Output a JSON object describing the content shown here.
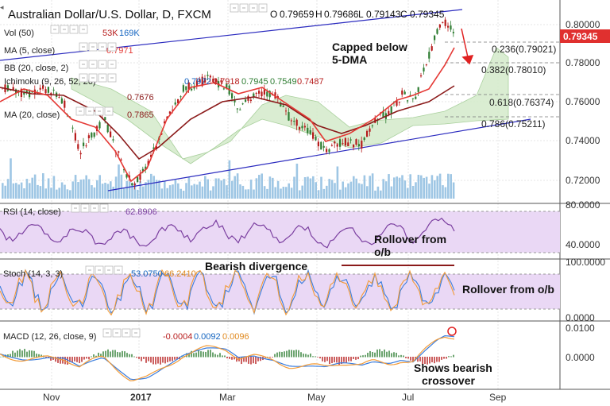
{
  "header": {
    "title": "Australian Dollar/U.S. Dollar, D, FXCM",
    "o_label": "O",
    "o_value": "0.79659",
    "h_label": "H",
    "h_value": "0.79686",
    "l_label": "L",
    "l_value": "0.79143",
    "c_label": "C",
    "c_value": "0.79345"
  },
  "legend": {
    "vol_label": "Vol (50)",
    "vol_v1": "53K",
    "vol_v2": "169K",
    "ma5_label": "MA (5, close)",
    "ma5_value": "0.7971",
    "bb_label": "BB (20, close, 2)",
    "ichimoku_label": "Ichimoku (9, 26, 52, 26)",
    "ichimoku_values": [
      "0.7972",
      "0.7918",
      "0.7945",
      "0.7549",
      "0.7487"
    ],
    "ma20_label": "MA (20, close)",
    "ma20_values": [
      "0.7676",
      "0.7865"
    ]
  },
  "annotations": {
    "capped_line1": "Capped below",
    "capped_line2": "5-DMA",
    "bearish_divergence": "Bearish divergence",
    "rsi_rollover_line1": "Rollover from",
    "rsi_rollover_line2": "o/b",
    "stoch_rollover": "Rollover from o/b",
    "macd_line1": "Shows bearish",
    "macd_line2": "crossover"
  },
  "price_axis": {
    "ticks": [
      "0.80000",
      "0.78000",
      "0.76000",
      "0.74000",
      "0.72000"
    ],
    "current_price": "0.79345"
  },
  "fib_levels": [
    "0.236(0.79021)",
    "0.382(0.78010)",
    "0.618(0.76374)",
    "0.786(0.75211)"
  ],
  "rsi": {
    "label": "RSI (14, close)",
    "value": "62.8906",
    "ticks": [
      "80.0000",
      "40.0000"
    ]
  },
  "stoch": {
    "label": "Stoch (14, 3, 3)",
    "values": [
      "53.0750",
      "66.2410"
    ],
    "ticks": [
      "100.0000",
      "0.0000"
    ]
  },
  "macd": {
    "label": "MACD (12, 26, close, 9)",
    "values": [
      "-0.0004",
      "0.0092",
      "0.0096"
    ],
    "ticks": [
      "0.0100",
      "0.0000"
    ]
  },
  "time_axis": {
    "labels": [
      "Nov",
      "2017",
      "Mar",
      "May",
      "Jul",
      "Sep"
    ]
  },
  "colors": {
    "up_candle": "#2e7d32",
    "down_candle": "#b71c1c",
    "ma5": "#e53935",
    "ma20": "#8b1a1a",
    "trendline": "#2b2bbf",
    "cloud": "#cfe8c4",
    "volume": "#9ec6e4",
    "rsi": "#7b3fa0",
    "panel_fill": "#ead8f5",
    "stoch_k": "#3b7ddd",
    "stoch_d": "#f29b38",
    "price_badge": "#e0302f"
  }
}
